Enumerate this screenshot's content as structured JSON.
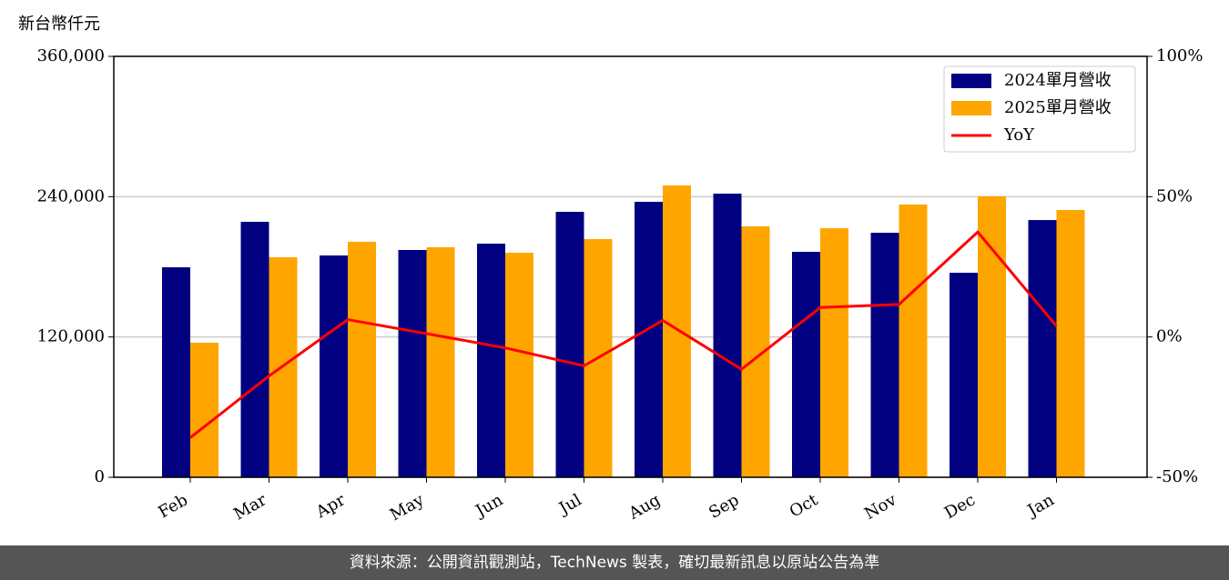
{
  "chart_data": {
    "type": "bar_line",
    "ylabel": "新台幣仟元",
    "footer": "資料來源：公開資訊觀測站，TechNews 製表，確切最新訊息以原站公告為準",
    "categories": [
      "Feb",
      "Mar",
      "Apr",
      "May",
      "Jun",
      "Jul",
      "Aug",
      "Sep",
      "Oct",
      "Nov",
      "Dec",
      "Jan"
    ],
    "series": [
      {
        "name": "2024單月營收",
        "color": "#000080",
        "values": [
          179600,
          218500,
          189700,
          194400,
          199800,
          227000,
          235600,
          242600,
          192800,
          209100,
          174900,
          220000
        ]
      },
      {
        "name": "2025單月營收",
        "color": "#ffa500",
        "values": [
          115100,
          188200,
          201400,
          196700,
          192000,
          203700,
          249600,
          214600,
          213000,
          233300,
          240300,
          228600
        ]
      },
      {
        "name": "YoY",
        "color": "#ff0000",
        "axis": "y2",
        "values": [
          -35.9,
          -13.9,
          6.2,
          1.2,
          -3.9,
          -10.3,
          5.9,
          -11.5,
          10.5,
          11.6,
          37.4,
          3.9
        ]
      }
    ],
    "ylim": [
      0,
      360000
    ],
    "yticks": [
      0,
      {
        "value": 120000,
        "label": "120,000"
      },
      {
        "value": 240000,
        "label": "240,000"
      },
      {
        "value": 360000,
        "label": "360,000"
      }
    ],
    "y2lim": [
      -50,
      100
    ],
    "y2ticks": [
      {
        "value": -50,
        "label": "-50%"
      },
      {
        "value": 0,
        "label": "0%"
      },
      {
        "value": 50,
        "label": "50%"
      },
      {
        "value": 100,
        "label": "100%"
      }
    ],
    "grid": true,
    "legend": "upper right"
  }
}
